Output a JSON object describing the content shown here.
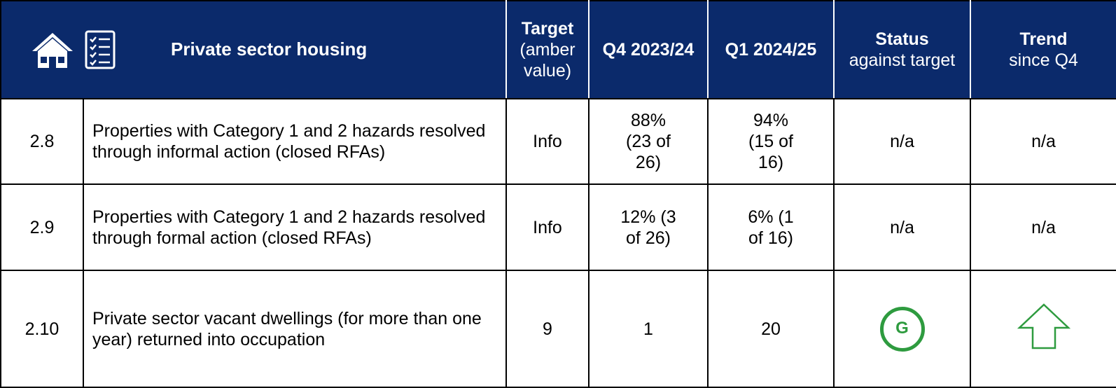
{
  "header": {
    "title": "Private sector housing",
    "columns": [
      {
        "bold": "Target",
        "sub": "(amber value)"
      },
      {
        "bold": "Q4 2023/24",
        "sub": null
      },
      {
        "bold": "Q1 2024/25",
        "sub": null
      },
      {
        "bold": "Status",
        "sub": "against target"
      },
      {
        "bold": "Trend",
        "sub": "since Q4"
      }
    ]
  },
  "table": {
    "rows": [
      [
        "2.8",
        "Properties with Category 1 and 2 hazards resolved through informal action (closed RFAs)",
        "Info",
        "88% (23 of 26)",
        "94% (15 of 16)",
        "n/a",
        "n/a"
      ],
      [
        "2.9",
        "Properties with Category 1 and 2 hazards resolved through formal action (closed RFAs)",
        "Info",
        "12% (3 of 26)",
        "6% (1 of 16)",
        "n/a",
        "n/a"
      ],
      [
        "2.10",
        "Private sector vacant dwellings (for more than one year) returned into occupation",
        "9",
        "1",
        "20",
        "G",
        null
      ]
    ]
  }
}
